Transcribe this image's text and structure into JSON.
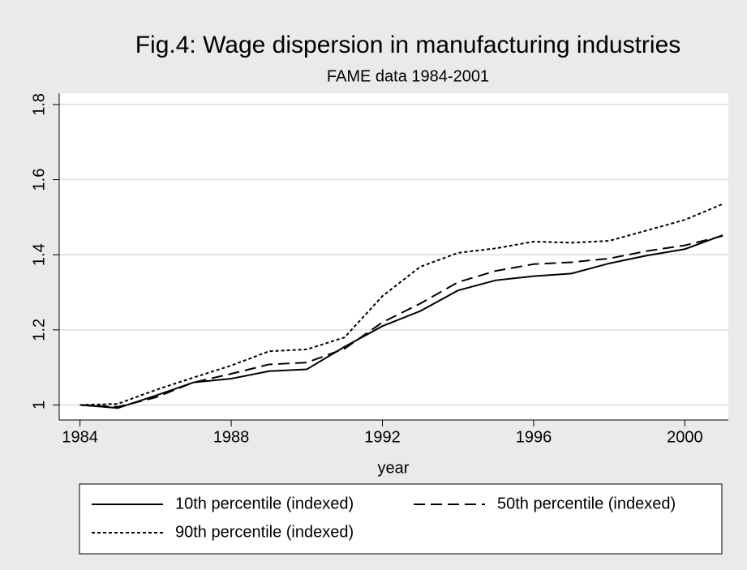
{
  "chart_data": {
    "type": "line",
    "title": "Fig.4: Wage dispersion in manufacturing industries",
    "subtitle": "FAME data 1984-2001",
    "x_label": "year",
    "x": [
      1984,
      1985,
      1986,
      1987,
      1988,
      1989,
      1990,
      1991,
      1992,
      1993,
      1994,
      1995,
      1996,
      1997,
      1998,
      1999,
      2000,
      2001
    ],
    "series": [
      {
        "name": "10th percentile (indexed)",
        "color": "#000000",
        "dash": "solid",
        "values": [
          1.0,
          0.992,
          1.025,
          1.06,
          1.07,
          1.09,
          1.095,
          1.155,
          1.21,
          1.25,
          1.305,
          1.332,
          1.343,
          1.35,
          1.377,
          1.398,
          1.415,
          1.452
        ]
      },
      {
        "name": "50th percentile (indexed)",
        "color": "#000000",
        "dash": "dashed",
        "values": [
          1.0,
          0.995,
          1.02,
          1.06,
          1.083,
          1.108,
          1.113,
          1.15,
          1.22,
          1.27,
          1.327,
          1.357,
          1.375,
          1.38,
          1.39,
          1.41,
          1.425,
          1.45
        ]
      },
      {
        "name": "90th percentile (indexed)",
        "color": "#000000",
        "dash": "dotted",
        "values": [
          1.0,
          1.003,
          1.04,
          1.073,
          1.105,
          1.143,
          1.148,
          1.18,
          1.29,
          1.368,
          1.405,
          1.417,
          1.435,
          1.432,
          1.437,
          1.465,
          1.493,
          1.535
        ]
      }
    ],
    "xlim": [
      1983.45,
      2001.15
    ],
    "xticks": [
      1984,
      1988,
      1992,
      1996,
      2000
    ],
    "ylim": [
      0.96,
      1.83
    ],
    "yticks": [
      1,
      1.2,
      1.4,
      1.6,
      1.8
    ],
    "grid": true,
    "legend": "bottom"
  }
}
